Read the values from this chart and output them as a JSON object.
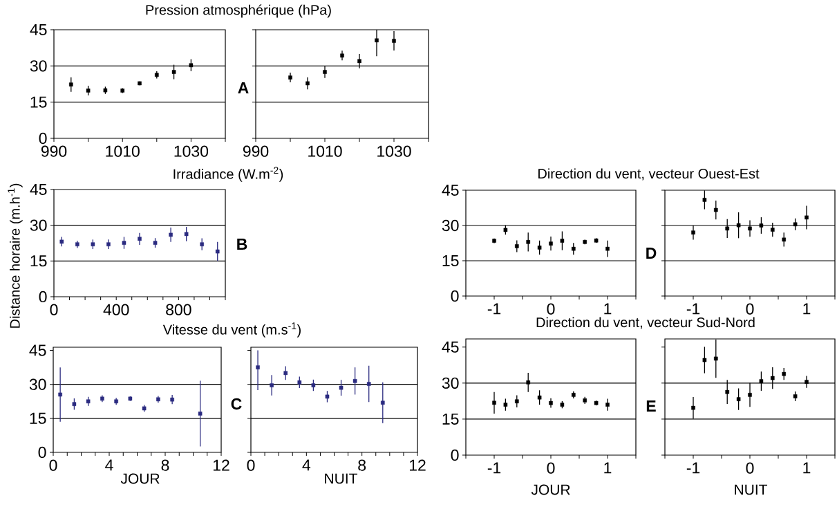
{
  "chart_data": [
    {
      "type": "scatter",
      "title": "Pression atmosphérique (hPa)",
      "annotations": [
        "A"
      ],
      "color": "#000000",
      "marker": "square",
      "x": [
        995,
        1000,
        1005,
        1010,
        1015,
        1020,
        1025,
        1030
      ],
      "values": [
        22.3,
        19.8,
        19.9,
        19.8,
        22.8,
        26.3,
        27.5,
        30.3
      ],
      "errors": [
        3,
        2,
        1.5,
        1,
        0.8,
        1.5,
        3,
        2.5
      ],
      "xlim": [
        990,
        1040
      ],
      "xticks": [
        990,
        {
          "value": 1000,
          "label": null
        },
        1010,
        {
          "value": 1020,
          "label": null
        },
        1030,
        {
          "value": 1040,
          "label": null
        }
      ],
      "ylim": [
        0,
        45
      ],
      "yticks": [
        0,
        15,
        30,
        45
      ],
      "ref_lines": [
        {
          "axis": "y",
          "value": 15
        },
        {
          "axis": "y",
          "value": 30
        }
      ]
    },
    {
      "type": "scatter",
      "color": "#000000",
      "marker": "square",
      "tick_labels": "x",
      "x": [
        1000,
        1005,
        1010,
        1015,
        1020,
        1025,
        1030
      ],
      "values": [
        25.2,
        22.8,
        27.5,
        34.3,
        32.0,
        40.6,
        40.4
      ],
      "errors": [
        2,
        2.5,
        2.5,
        2,
        3,
        [
          34,
          45
        ],
        4
      ],
      "xlim": [
        990,
        1040
      ],
      "xticks": [
        990,
        {
          "value": 1000,
          "label": null
        },
        1010,
        {
          "value": 1020,
          "label": null
        },
        1030,
        {
          "value": 1040,
          "label": null
        }
      ],
      "ylim": [
        0,
        45
      ],
      "yticks": [
        0,
        15,
        30,
        45
      ],
      "ref_lines": [
        {
          "axis": "y",
          "value": 15
        },
        {
          "axis": "y",
          "value": 30
        }
      ]
    },
    {
      "type": "scatter",
      "title": "Irradiance (W.m$^{-2}$)",
      "ylabel": "Distance horaire (m.h$^{-1}$)",
      "annotations": [
        "B"
      ],
      "color": "#2b2b80",
      "marker": "square",
      "x": [
        50,
        150,
        250,
        350,
        450,
        550,
        650,
        750,
        850,
        950,
        1050
      ],
      "values": [
        23.1,
        22.0,
        22.0,
        22.0,
        22.6,
        24.3,
        22.6,
        26.0,
        26.3,
        22.0,
        19.0
      ],
      "errors": [
        2,
        1.5,
        2,
        2,
        2.5,
        2.5,
        2,
        3,
        3,
        2.5,
        4
      ],
      "xlim": [
        0,
        1100
      ],
      "xticks": [
        0,
        {
          "value": 100,
          "label": null
        },
        {
          "value": 200,
          "label": null
        },
        {
          "value": 300,
          "label": null
        },
        400,
        {
          "value": 500,
          "label": null
        },
        {
          "value": 600,
          "label": null
        },
        {
          "value": 700,
          "label": null
        },
        800,
        {
          "value": 900,
          "label": null
        },
        {
          "value": 1000,
          "label": null
        },
        {
          "value": 1100,
          "label": null
        }
      ],
      "ylim": [
        0,
        45
      ],
      "yticks": [
        0,
        15,
        30,
        45
      ],
      "ref_lines": [
        {
          "axis": "y",
          "value": 15
        },
        {
          "axis": "y",
          "value": 30
        }
      ]
    },
    {
      "type": "scatter",
      "title": "Direction du vent, vecteur Ouest-Est",
      "annotations": [
        "D"
      ],
      "color": "#000000",
      "marker": "square",
      "x": [
        -1,
        -0.8,
        -0.6,
        -0.4,
        -0.2,
        0,
        0.2,
        0.4,
        0.6,
        0.8,
        1
      ],
      "values": [
        23.5,
        28.1,
        21.2,
        23.0,
        20.6,
        22.3,
        23.5,
        20.1,
        23.0,
        23.6,
        20.1
      ],
      "errors": [
        1,
        2,
        2.5,
        4,
        3,
        3,
        4,
        2.5,
        1,
        1,
        3.5
      ],
      "xlim": [
        -1.5,
        1.5
      ],
      "xticks": [
        {
          "value": -1.5,
          "label": null
        },
        -1,
        {
          "value": -0.5,
          "label": null
        },
        0,
        {
          "value": 0.5,
          "label": null
        },
        1,
        {
          "value": 1.5,
          "label": null
        }
      ],
      "ylim": [
        0,
        45
      ],
      "yticks": [
        0,
        15,
        30,
        45
      ],
      "ref_lines": [
        {
          "axis": "y",
          "value": 15
        },
        {
          "axis": "y",
          "value": 30
        }
      ]
    },
    {
      "type": "scatter",
      "color": "#000000",
      "marker": "square",
      "tick_labels": "x",
      "x": [
        -1,
        -0.8,
        -0.6,
        -0.4,
        -0.2,
        0,
        0.2,
        0.4,
        0.6,
        0.8,
        1
      ],
      "values": [
        27.0,
        40.9,
        36.6,
        28.7,
        30.1,
        28.7,
        30.0,
        28.2,
        24.0,
        30.5,
        33.4
      ],
      "errors": [
        3,
        4,
        4,
        4,
        5.5,
        3.5,
        3.5,
        3,
        3,
        2.5,
        5
      ],
      "xlim": [
        -1.5,
        1.5
      ],
      "xticks": [
        {
          "value": -1.5,
          "label": null
        },
        -1,
        {
          "value": -0.5,
          "label": null
        },
        0,
        {
          "value": 0.5,
          "label": null
        },
        1,
        {
          "value": 1.5,
          "label": null
        }
      ],
      "ylim": [
        0,
        45
      ],
      "yticks": [
        0,
        15,
        30,
        45
      ],
      "ref_lines": [
        {
          "axis": "y",
          "value": 15
        },
        {
          "axis": "y",
          "value": 30
        }
      ]
    },
    {
      "type": "scatter",
      "title": "Vitesse du vent (m.s$^{-1}$)",
      "xlabel": "JOUR",
      "annotations": [
        "C"
      ],
      "color": "#2b2b80",
      "marker": "square",
      "x": [
        0.5,
        1.5,
        2.5,
        3.5,
        4.5,
        5.5,
        6.5,
        7.5,
        8.5,
        10.5
      ],
      "values": [
        25.5,
        21.3,
        22.5,
        23.7,
        22.5,
        23.7,
        19.4,
        23.4,
        23.3,
        17.1
      ],
      "errors": [
        12,
        2.5,
        2,
        1.5,
        1.5,
        1,
        1.5,
        1.5,
        2,
        14.5
      ],
      "xlim": [
        0,
        12
      ],
      "xticks": [
        0,
        {
          "value": 1,
          "label": null
        },
        {
          "value": 2,
          "label": null
        },
        {
          "value": 3,
          "label": null
        },
        4,
        {
          "value": 5,
          "label": null
        },
        {
          "value": 6,
          "label": null
        },
        {
          "value": 7,
          "label": null
        },
        8,
        {
          "value": 9,
          "label": null
        },
        {
          "value": 10,
          "label": null
        },
        {
          "value": 11,
          "label": null
        },
        12
      ],
      "ylim": [
        0,
        46.4
      ],
      "yticks": [
        0,
        15,
        30,
        45
      ],
      "ref_lines": [
        {
          "axis": "y",
          "value": 15
        },
        {
          "axis": "y",
          "value": 30
        }
      ]
    },
    {
      "type": "scatter",
      "xlabel": "NUIT",
      "color": "#2b2b80",
      "marker": "square",
      "tick_labels": "x",
      "x": [
        0.5,
        1.5,
        2.5,
        3.5,
        4.5,
        5.5,
        6.5,
        7.5,
        8.5,
        9.5
      ],
      "values": [
        37.5,
        29.6,
        35.0,
        30.9,
        29.6,
        24.6,
        28.5,
        31.5,
        30.2,
        21.9
      ],
      "errors": [
        [
          27.5,
          45
        ],
        4.5,
        3,
        2.5,
        2.5,
        2.5,
        3.5,
        6,
        8,
        9
      ],
      "xlim": [
        0,
        12
      ],
      "xticks": [
        0,
        {
          "value": 1,
          "label": null
        },
        {
          "value": 2,
          "label": null
        },
        {
          "value": 3,
          "label": null
        },
        4,
        {
          "value": 5,
          "label": null
        },
        {
          "value": 6,
          "label": null
        },
        {
          "value": 7,
          "label": null
        },
        8,
        {
          "value": 9,
          "label": null
        },
        {
          "value": 10,
          "label": null
        },
        {
          "value": 11,
          "label": null
        },
        12
      ],
      "ylim": [
        0,
        46.4
      ],
      "yticks": [
        0,
        15,
        30,
        45
      ],
      "ref_lines": [
        {
          "axis": "y",
          "value": 15
        },
        {
          "axis": "y",
          "value": 30
        }
      ]
    },
    {
      "type": "scatter",
      "title": "Direction du vent, vecteur Sud-Nord",
      "xlabel": "JOUR",
      "annotations": [
        "E"
      ],
      "color": "#000000",
      "marker": "square",
      "x": [
        -1,
        -0.8,
        -0.6,
        -0.4,
        -0.2,
        0,
        0.2,
        0.4,
        0.6,
        0.8,
        1
      ],
      "values": [
        21.8,
        21.0,
        22.4,
        30.3,
        24.0,
        21.7,
        21.0,
        25.1,
        22.8,
        21.7,
        21.0
      ],
      "errors": [
        4.5,
        2.5,
        2.5,
        4,
        3,
        2,
        1.5,
        1.5,
        1.5,
        1,
        2.5
      ],
      "xlim": [
        -1.5,
        1.5
      ],
      "xticks": [
        {
          "value": -1.5,
          "label": null
        },
        -1,
        {
          "value": -0.5,
          "label": null
        },
        0,
        {
          "value": 0.5,
          "label": null
        },
        1,
        {
          "value": 1.5,
          "label": null
        }
      ],
      "ylim": [
        0,
        48.4
      ],
      "yticks": [
        0,
        15,
        30,
        45
      ],
      "ref_lines": [
        {
          "axis": "y",
          "value": 15
        },
        {
          "axis": "y",
          "value": 30
        }
      ]
    },
    {
      "type": "scatter",
      "xlabel": "NUIT",
      "color": "#000000",
      "marker": "square",
      "tick_labels": "x",
      "x": [
        -1,
        -0.8,
        -0.6,
        -0.4,
        -0.2,
        0,
        0.2,
        0.4,
        0.6,
        0.8,
        1
      ],
      "values": [
        19.7,
        39.6,
        40.2,
        26.3,
        23.3,
        25.1,
        30.8,
        32.1,
        33.8,
        24.5,
        30.5
      ],
      "errors": [
        4.5,
        5.5,
        8,
        5,
        4.5,
        5,
        4,
        4.5,
        2.5,
        2,
        2.5
      ],
      "xlim": [
        -1.5,
        1.5
      ],
      "xticks": [
        {
          "value": -1.5,
          "label": null
        },
        -1,
        {
          "value": -0.5,
          "label": null
        },
        0,
        {
          "value": 0.5,
          "label": null
        },
        1,
        {
          "value": 1.5,
          "label": null
        }
      ],
      "ylim": [
        0,
        48.4
      ],
      "yticks": [
        0,
        15,
        30,
        45
      ],
      "ref_lines": [
        {
          "axis": "y",
          "value": 15
        },
        {
          "axis": "y",
          "value": 30
        }
      ]
    }
  ]
}
